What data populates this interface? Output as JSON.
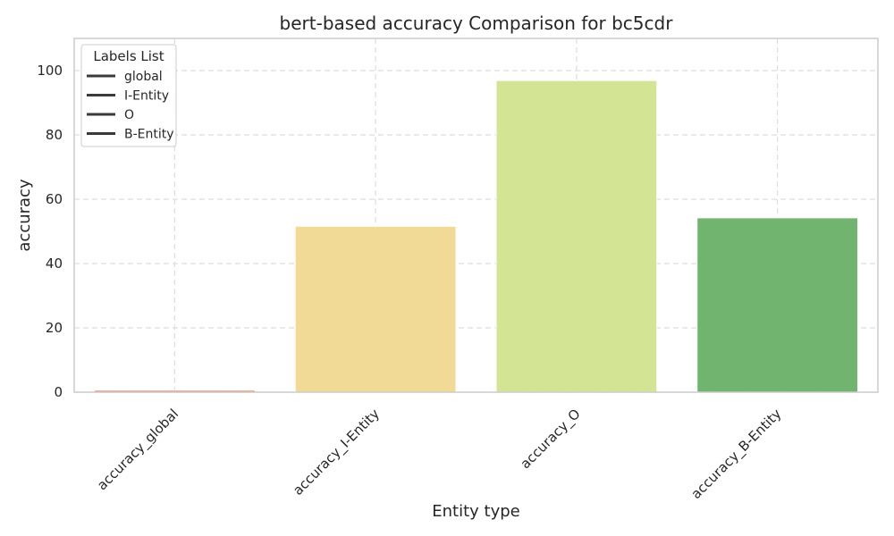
{
  "chart_data": {
    "type": "bar",
    "title": "bert-based accuracy Comparison for bc5cdr",
    "xlabel": "Entity type",
    "ylabel": "accuracy",
    "categories": [
      "accuracy_global",
      "accuracy_I-Entity",
      "accuracy_O",
      "accuracy_B-Entity"
    ],
    "values": [
      0.6,
      51.6,
      96.9,
      54.2
    ],
    "colors": [
      "#f4855f",
      "#f1da95",
      "#d3e495",
      "#71b46f"
    ],
    "ylim": [
      0,
      110
    ],
    "yticks": [
      0,
      20,
      40,
      60,
      80,
      100
    ],
    "grid": true,
    "legend": {
      "title": "Labels List",
      "placement": "top-left",
      "entries": [
        "global",
        "I-Entity",
        "O",
        "B-Entity"
      ],
      "line_color": "#3a3a3a"
    },
    "axis_color": "#cccccc",
    "grid_color": "#dddddd"
  }
}
